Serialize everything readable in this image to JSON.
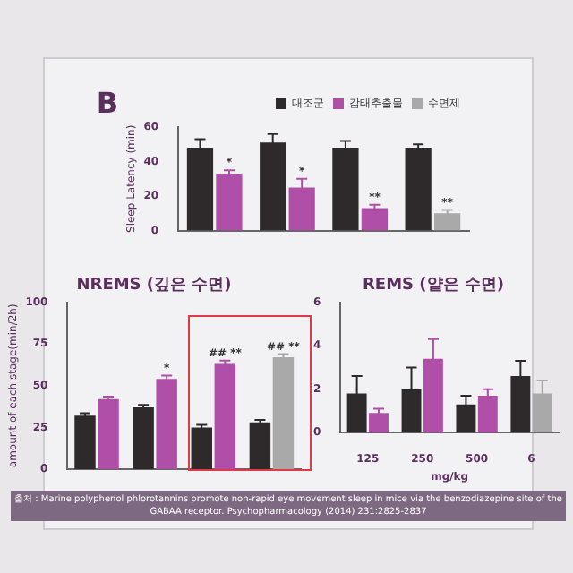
{
  "chart_data": [
    {
      "type": "bar",
      "ylabel": "Sleep Latency (min)",
      "ylim": [
        0,
        60
      ],
      "yticks": [
        0,
        20,
        40,
        60
      ],
      "legend": "top",
      "annotations": [
        "B"
      ],
      "categories": [
        null,
        null,
        null,
        null
      ],
      "series": [
        {
          "name": "대조군",
          "color": "#2e2a2b",
          "values": [
            48,
            51,
            48,
            48
          ],
          "errors": [
            5,
            5,
            4,
            2
          ]
        },
        {
          "name": "감태추출물",
          "color": "#b04fa8",
          "values": [
            33,
            25,
            13,
            null
          ],
          "errors": [
            2,
            5,
            2,
            null
          ],
          "value_labels": [
            "*",
            "*",
            "**",
            null
          ]
        },
        {
          "name": "수면제",
          "color": "#a9a9a9",
          "values": [
            null,
            null,
            null,
            10
          ],
          "errors": [
            null,
            null,
            null,
            2
          ],
          "value_labels": [
            null,
            null,
            null,
            "**"
          ]
        }
      ]
    },
    {
      "type": "bar",
      "title": "NREMS (깊은 수면)",
      "ylabel": "amount of each stage(min/2h)",
      "ylim": [
        0,
        100
      ],
      "yticks": [
        0,
        25,
        50,
        75,
        100
      ],
      "tick_labels": "y",
      "categories": [
        null,
        null,
        null,
        null
      ],
      "series": [
        {
          "color": "#2e2a2b",
          "values": [
            32,
            37,
            25,
            28
          ],
          "errors": [
            1.5,
            1.5,
            1.5,
            1.5
          ]
        },
        {
          "color": "#b04fa8",
          "values": [
            42,
            54,
            63,
            null
          ],
          "errors": [
            1.5,
            2,
            2,
            null
          ],
          "value_labels": [
            null,
            "*",
            "## **",
            null
          ]
        },
        {
          "color": "#a9a9a9",
          "values": [
            null,
            null,
            null,
            67
          ],
          "errors": [
            null,
            null,
            null,
            2
          ],
          "value_labels": [
            null,
            null,
            null,
            "## **"
          ]
        }
      ]
    },
    {
      "type": "bar",
      "title": "REMS (얕은 수면)",
      "xlabel": "mg/kg",
      "ylim": [
        0,
        6
      ],
      "yticks": [
        0,
        2,
        4,
        6
      ],
      "categories": [
        "125",
        "250",
        "500",
        "6"
      ],
      "annotations": [
        "출처 : Marine polyphenol phlorotannins promote non-rapid eye movement sleep in mice via the benzodiazepine site of the GABAA receptor. Psychopharmacology (2014) 231:2825-2837"
      ],
      "series": [
        {
          "color": "#2e2a2b",
          "values": [
            1.8,
            2.0,
            1.3,
            2.6
          ],
          "errors": [
            0.8,
            1.0,
            0.4,
            0.7
          ]
        },
        {
          "color": "#b04fa8",
          "values": [
            0.9,
            3.4,
            1.7,
            null
          ],
          "errors": [
            0.2,
            0.9,
            0.3,
            null
          ]
        },
        {
          "color": "#a9a9a9",
          "values": [
            null,
            null,
            null,
            1.8
          ],
          "errors": [
            null,
            null,
            null,
            0.6
          ]
        }
      ]
    }
  ]
}
